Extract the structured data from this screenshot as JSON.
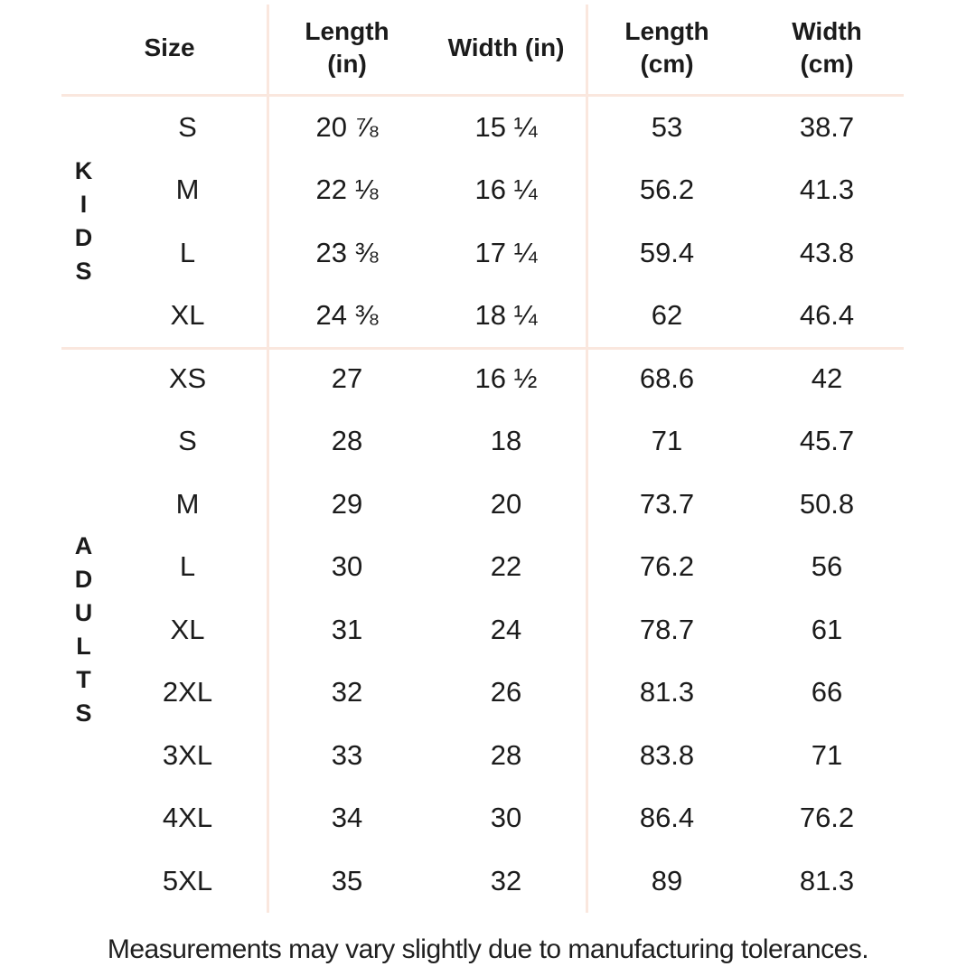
{
  "colors": {
    "background": "#ffffff",
    "divider": "#fae7de",
    "text": "#1b1b1b"
  },
  "header": {
    "size": {
      "lines": [
        "Size"
      ]
    },
    "length_in": {
      "lines": [
        "Length",
        "(in)"
      ]
    },
    "width_in": {
      "lines": [
        "Width (in)"
      ]
    },
    "length_cm": {
      "lines": [
        "Length",
        "(cm)"
      ]
    },
    "width_cm": {
      "lines": [
        "Width",
        "(cm)"
      ]
    }
  },
  "groups": [
    {
      "label": "KIDS",
      "letters": [
        "K",
        "I",
        "D",
        "S"
      ],
      "rows": [
        {
          "size": "S",
          "length_in": "20 ⅞",
          "width_in": "15 ¼",
          "length_cm": "53",
          "width_cm": "38.7"
        },
        {
          "size": "M",
          "length_in": "22 ⅛",
          "width_in": "16 ¼",
          "length_cm": "56.2",
          "width_cm": "41.3"
        },
        {
          "size": "L",
          "length_in": "23 ⅜",
          "width_in": "17 ¼",
          "length_cm": "59.4",
          "width_cm": "43.8"
        },
        {
          "size": "XL",
          "length_in": "24 ⅜",
          "width_in": "18 ¼",
          "length_cm": "62",
          "width_cm": "46.4"
        }
      ]
    },
    {
      "label": "ADULTS",
      "letters": [
        "A",
        "D",
        "U",
        "L",
        "T",
        "S"
      ],
      "rows": [
        {
          "size": "XS",
          "length_in": "27",
          "width_in": "16 ½",
          "length_cm": "68.6",
          "width_cm": "42"
        },
        {
          "size": "S",
          "length_in": "28",
          "width_in": "18",
          "length_cm": "71",
          "width_cm": "45.7"
        },
        {
          "size": "M",
          "length_in": "29",
          "width_in": "20",
          "length_cm": "73.7",
          "width_cm": "50.8"
        },
        {
          "size": "L",
          "length_in": "30",
          "width_in": "22",
          "length_cm": "76.2",
          "width_cm": "56"
        },
        {
          "size": "XL",
          "length_in": "31",
          "width_in": "24",
          "length_cm": "78.7",
          "width_cm": "61"
        },
        {
          "size": "2XL",
          "length_in": "32",
          "width_in": "26",
          "length_cm": "81.3",
          "width_cm": "66"
        },
        {
          "size": "3XL",
          "length_in": "33",
          "width_in": "28",
          "length_cm": "83.8",
          "width_cm": "71"
        },
        {
          "size": "4XL",
          "length_in": "34",
          "width_in": "30",
          "length_cm": "86.4",
          "width_cm": "76.2"
        },
        {
          "size": "5XL",
          "length_in": "35",
          "width_in": "32",
          "length_cm": "89",
          "width_cm": "81.3"
        }
      ]
    }
  ],
  "footer": {
    "note": "Measurements may vary slightly due to manufacturing tolerances."
  }
}
